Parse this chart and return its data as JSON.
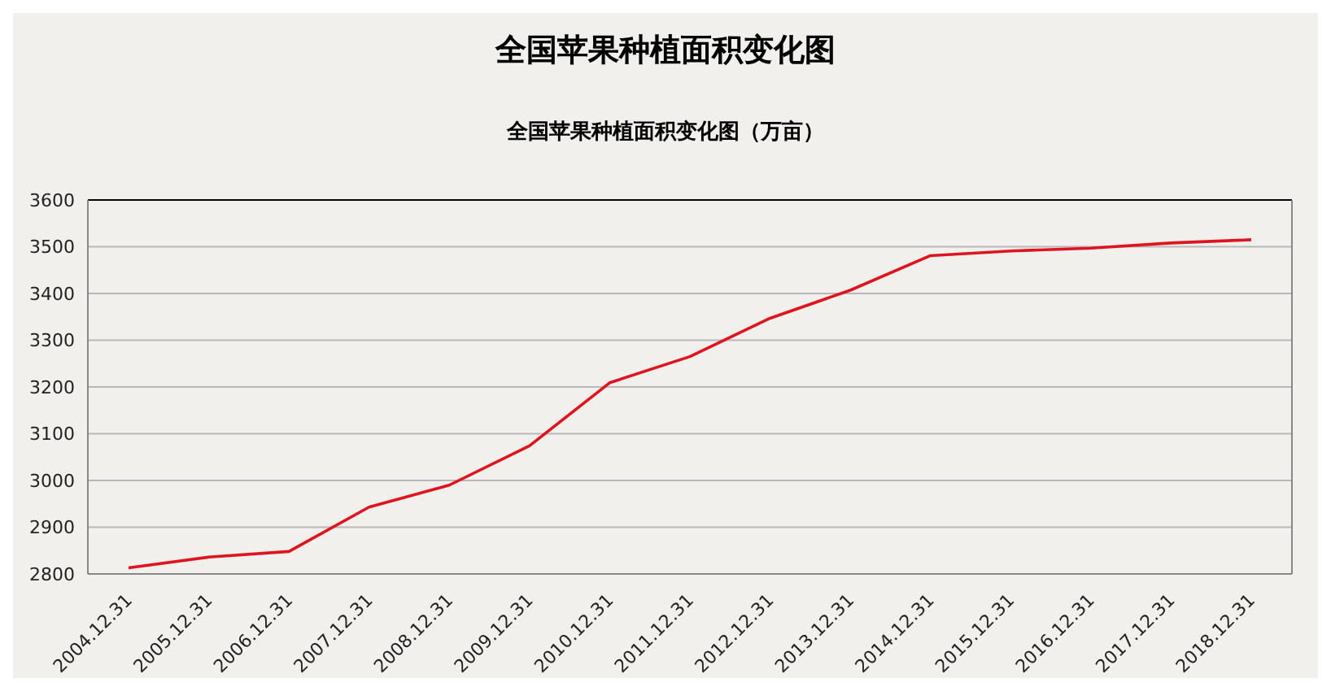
{
  "chart_data": {
    "type": "line",
    "title": "全国苹果种植面积变化图",
    "subtitle": "全国苹果种植面积变化图（万亩）",
    "categories": [
      "2004.12.31",
      "2005.12.31",
      "2006.12.31",
      "2007.12.31",
      "2008.12.31",
      "2009.12.31",
      "2010.12.31",
      "2011.12.31",
      "2012.12.31",
      "2013.12.31",
      "2014.12.31",
      "2015.12.31",
      "2016.12.31",
      "2017.12.31",
      "2018.12.31"
    ],
    "series": [
      {
        "color": "#e0141e",
        "values": [
          2813,
          2836,
          2848,
          2943,
          2990,
          3074,
          3209,
          3265,
          3347,
          3407,
          3481,
          3491,
          3497,
          3508,
          3515
        ]
      }
    ],
    "ylim": [
      2800,
      3600
    ],
    "yticks": [
      2800,
      2900,
      3000,
      3100,
      3200,
      3300,
      3400,
      3500,
      3600
    ],
    "grid": "y",
    "legend": false,
    "marker": "none",
    "line_style": "solid"
  }
}
